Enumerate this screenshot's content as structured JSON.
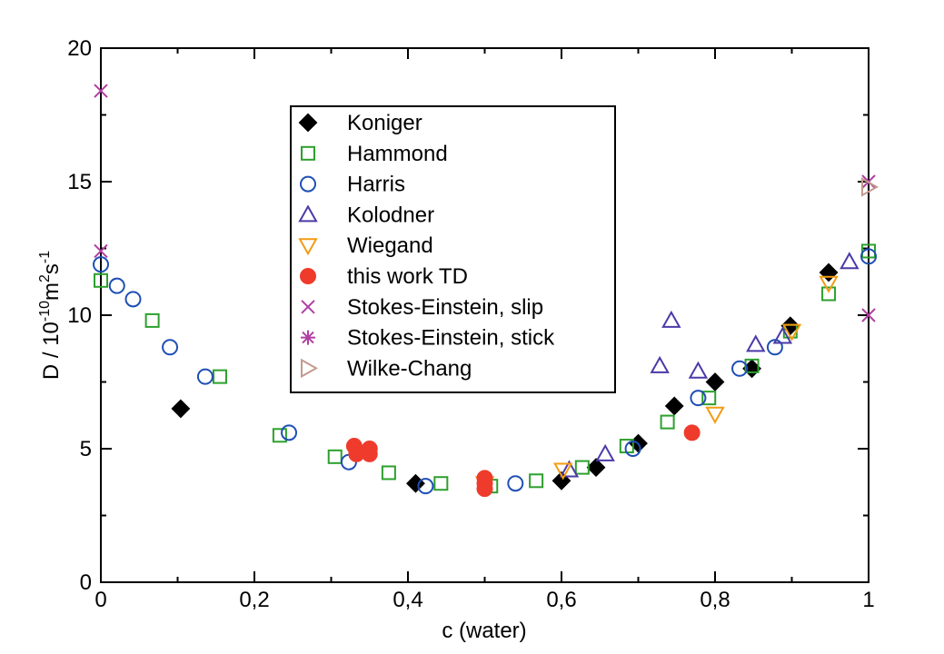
{
  "chart_data": {
    "type": "scatter",
    "xlabel": "c (water)",
    "ylabel": {
      "prefix": "D / 10",
      "exp1": "-10",
      "mid": "m",
      "exp2": "2",
      "mid2": "s",
      "exp3": "-1"
    },
    "xlim": [
      0,
      1
    ],
    "ylim": [
      0,
      20
    ],
    "x_ticks": [
      {
        "value": 0,
        "label": "0"
      },
      {
        "value": 0.2,
        "label": "0,2"
      },
      {
        "value": 0.4,
        "label": "0,4"
      },
      {
        "value": 0.6,
        "label": "0,6"
      },
      {
        "value": 0.8,
        "label": "0,8"
      },
      {
        "value": 1,
        "label": "1"
      }
    ],
    "y_ticks": [
      {
        "value": 0,
        "label": "0"
      },
      {
        "value": 5,
        "label": "5"
      },
      {
        "value": 10,
        "label": "10"
      },
      {
        "value": 15,
        "label": "15"
      },
      {
        "value": 20,
        "label": "20"
      }
    ],
    "legend_position": "top-center",
    "series": [
      {
        "name": "Koniger",
        "marker": "diamond",
        "color": "#000000",
        "filled": true,
        "points": [
          [
            0.104,
            6.5
          ],
          [
            0.41,
            3.7
          ],
          [
            0.6,
            3.8
          ],
          [
            0.645,
            4.3
          ],
          [
            0.7,
            5.2
          ],
          [
            0.747,
            6.6
          ],
          [
            0.8,
            7.5
          ],
          [
            0.848,
            8.0
          ],
          [
            0.898,
            9.6
          ],
          [
            0.948,
            11.6
          ]
        ]
      },
      {
        "name": "Hammond",
        "marker": "square",
        "color": "#2ca02c",
        "filled": false,
        "points": [
          [
            0,
            11.3
          ],
          [
            0.067,
            9.8
          ],
          [
            0.155,
            7.7
          ],
          [
            0.233,
            5.5
          ],
          [
            0.305,
            4.7
          ],
          [
            0.375,
            4.1
          ],
          [
            0.443,
            3.7
          ],
          [
            0.508,
            3.6
          ],
          [
            0.567,
            3.8
          ],
          [
            0.627,
            4.3
          ],
          [
            0.685,
            5.1
          ],
          [
            0.738,
            6.0
          ],
          [
            0.792,
            6.9
          ],
          [
            0.848,
            8.1
          ],
          [
            0.898,
            9.4
          ],
          [
            0.948,
            10.8
          ],
          [
            1.0,
            12.4
          ]
        ]
      },
      {
        "name": "Harris",
        "marker": "circle",
        "color": "#1f4fb4",
        "filled": false,
        "points": [
          [
            0,
            11.9
          ],
          [
            0.021,
            11.1
          ],
          [
            0.042,
            10.6
          ],
          [
            0.09,
            8.8
          ],
          [
            0.136,
            7.7
          ],
          [
            0.245,
            5.6
          ],
          [
            0.323,
            4.5
          ],
          [
            0.423,
            3.6
          ],
          [
            0.54,
            3.7
          ],
          [
            0.693,
            5.0
          ],
          [
            0.778,
            6.9
          ],
          [
            0.832,
            8.0
          ],
          [
            0.878,
            8.8
          ],
          [
            1.0,
            12.2
          ]
        ]
      },
      {
        "name": "Kolodner",
        "marker": "triangle-up",
        "color": "#4b3aa8",
        "filled": false,
        "points": [
          [
            0.61,
            4.2
          ],
          [
            0.657,
            4.8
          ],
          [
            0.728,
            8.1
          ],
          [
            0.743,
            9.8
          ],
          [
            0.778,
            7.9
          ],
          [
            0.853,
            8.9
          ],
          [
            0.888,
            9.2
          ],
          [
            0.975,
            12.0
          ]
        ]
      },
      {
        "name": "Wiegand",
        "marker": "triangle-down",
        "color": "#f39c12",
        "filled": false,
        "points": [
          [
            0.5,
            3.7
          ],
          [
            0.602,
            4.2
          ],
          [
            0.8,
            6.3
          ],
          [
            0.9,
            9.4
          ],
          [
            0.948,
            11.2
          ]
        ]
      },
      {
        "name": "this work TD",
        "marker": "circle",
        "color": "#ef3b2c",
        "filled": true,
        "points": [
          [
            0.33,
            5.1
          ],
          [
            0.333,
            4.8
          ],
          [
            0.35,
            5.0
          ],
          [
            0.35,
            4.8
          ],
          [
            0.5,
            3.9
          ],
          [
            0.5,
            3.7
          ],
          [
            0.5,
            3.5
          ],
          [
            0.77,
            5.6
          ]
        ]
      },
      {
        "name": "Stokes-Einstein, slip",
        "marker": "x",
        "color": "#b03fa2",
        "filled": false,
        "points": [
          [
            0,
            18.4
          ],
          [
            0,
            12.4
          ],
          [
            1.0,
            15.0
          ],
          [
            1.0,
            10.0
          ]
        ]
      },
      {
        "name": "Stokes-Einstein, stick",
        "marker": "star",
        "color": "#b03fa2",
        "filled": false,
        "points": []
      },
      {
        "name": "Wilke-Chang",
        "marker": "triangle-right",
        "color": "#c49a8f",
        "filled": false,
        "points": [
          [
            1.0,
            14.8
          ]
        ]
      }
    ]
  }
}
